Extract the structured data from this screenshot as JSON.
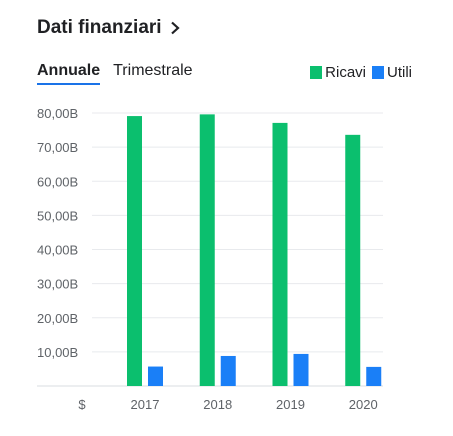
{
  "header": {
    "title": "Dati finanziari"
  },
  "tabs": [
    {
      "label": "Annuale",
      "active": true
    },
    {
      "label": "Trimestrale",
      "active": false
    }
  ],
  "colors": {
    "revenue": "#0bbf6e",
    "profit": "#1a7ff7",
    "grid": "#e8eaed",
    "accent": "#1a73e8"
  },
  "chart_data": {
    "type": "bar",
    "categories": [
      "2017",
      "2018",
      "2019",
      "2020"
    ],
    "series": [
      {
        "name": "Ricavi",
        "values": [
          79.1,
          79.6,
          77.1,
          73.6
        ]
      },
      {
        "name": "Utili",
        "values": [
          5.7,
          8.8,
          9.4,
          5.6
        ]
      }
    ],
    "ylim": [
      0,
      80
    ],
    "yticks": [
      10,
      20,
      30,
      40,
      50,
      60,
      70,
      80
    ],
    "ytick_labels": [
      "10,00B",
      "20,00B",
      "30,00B",
      "40,00B",
      "50,00B",
      "60,00B",
      "70,00B",
      "80,00B"
    ],
    "y_unit_label": "$",
    "legend_position": "top-right",
    "grid": true
  }
}
